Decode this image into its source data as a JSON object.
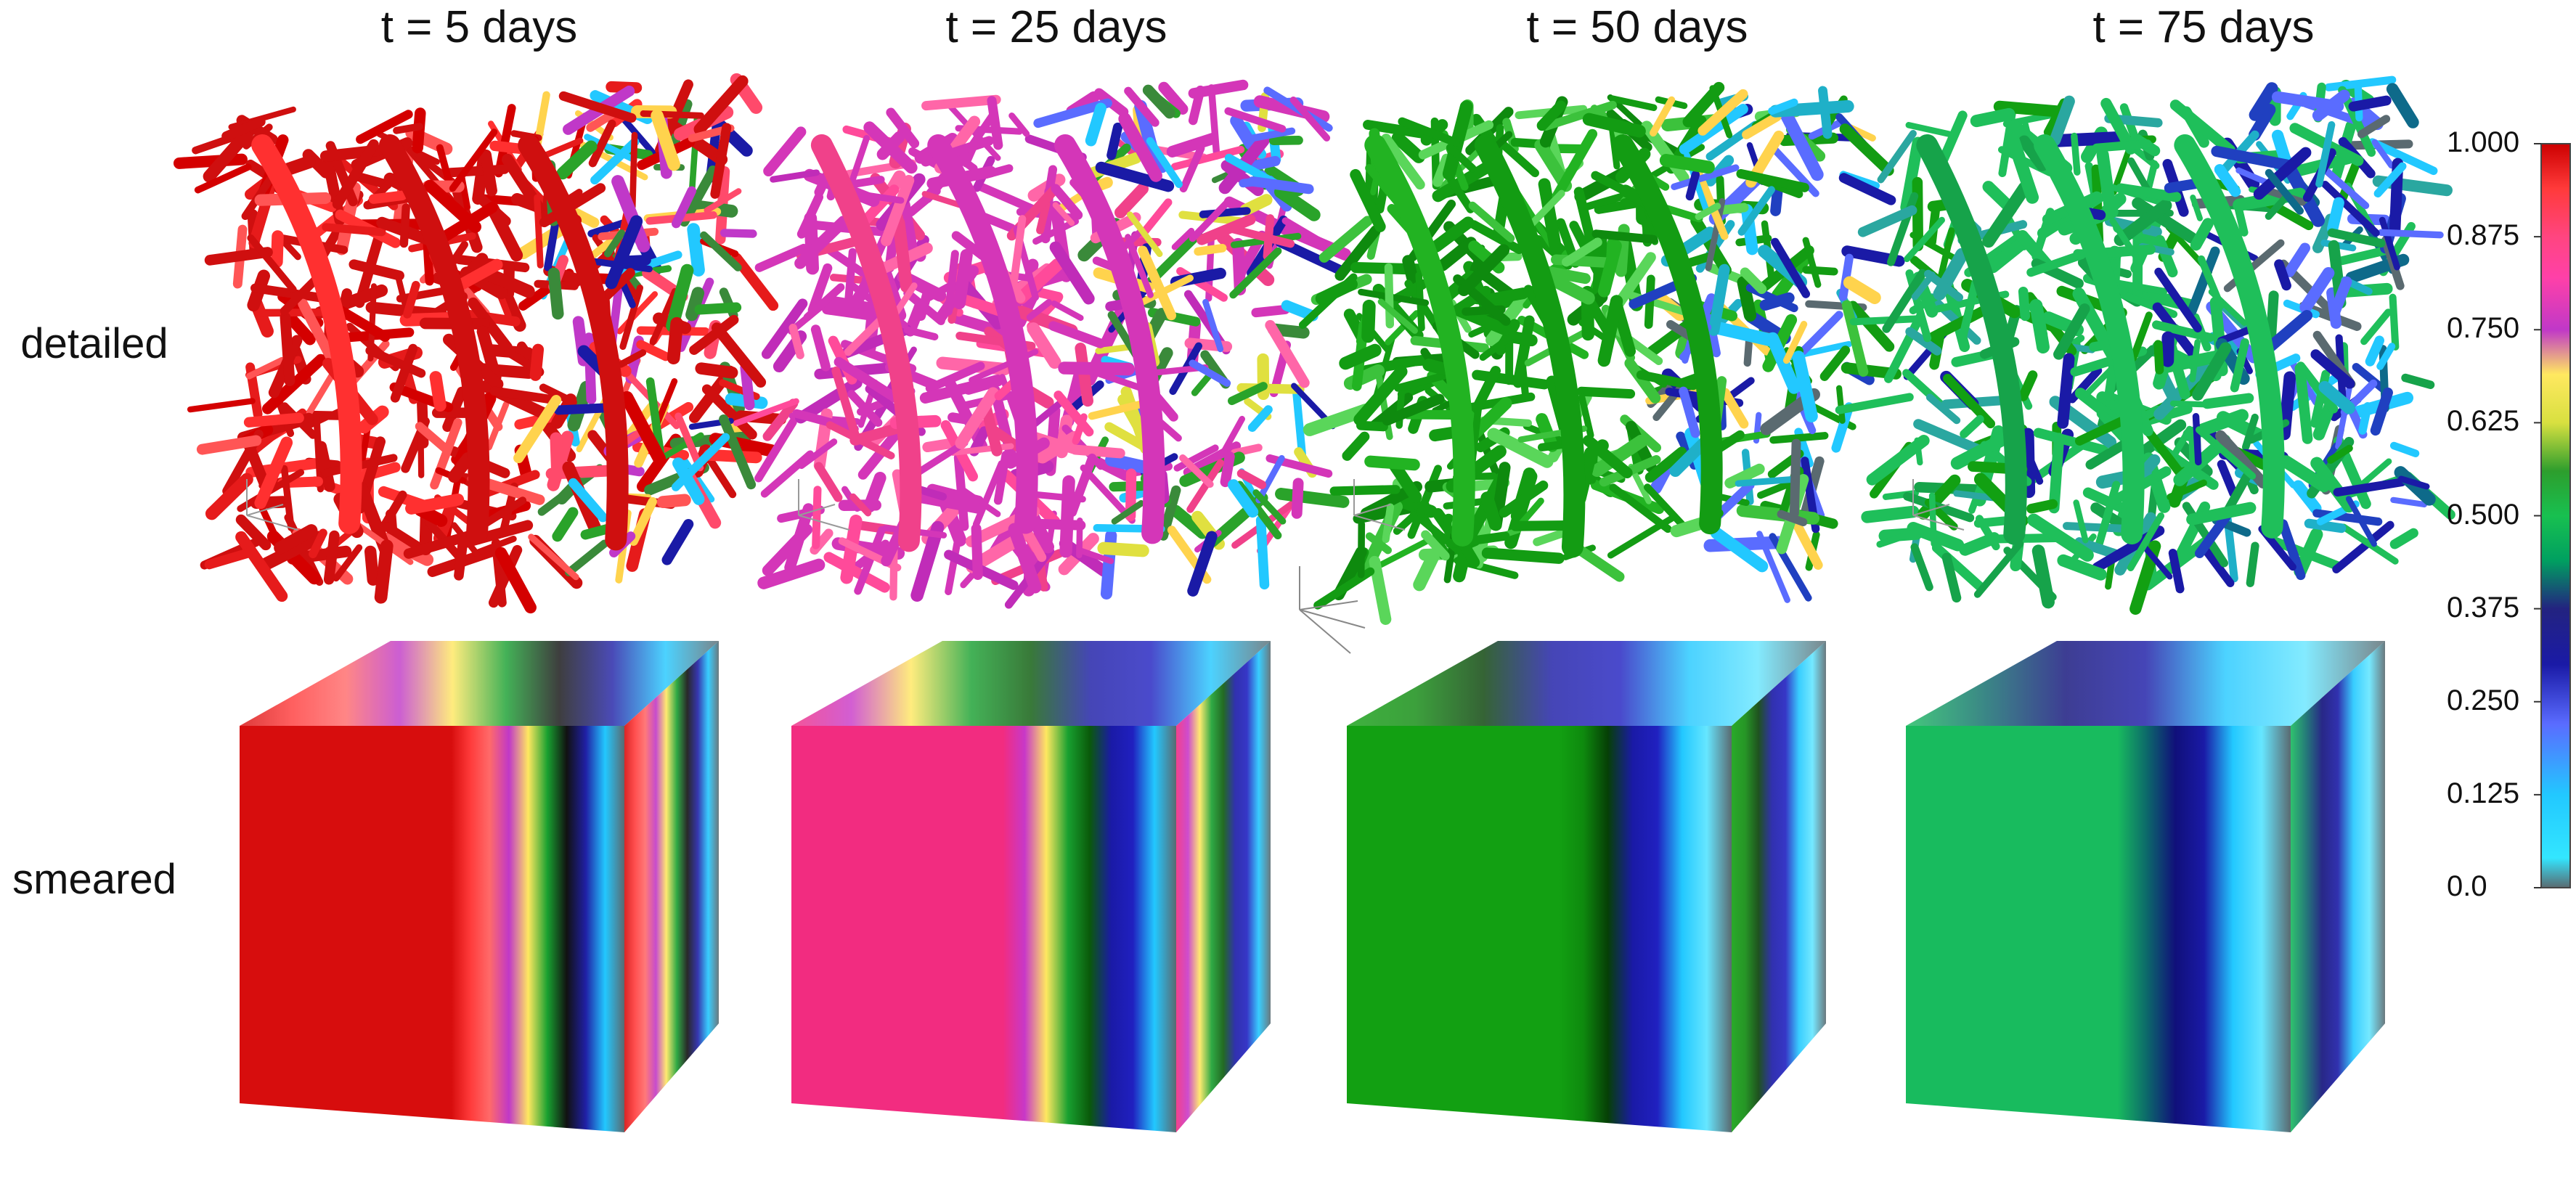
{
  "columns": [
    "t = 5 days",
    "t = 25 days",
    "t = 50 days",
    "t = 75 days"
  ],
  "rows": [
    "detailed",
    "smeared"
  ],
  "colorbar": {
    "ticks": [
      "1.000",
      "0.875",
      "0.750",
      "0.625",
      "0.500",
      "0.375",
      "0.250",
      "0.125",
      "0.0"
    ],
    "colormap": [
      [
        0.0,
        "#5a6a70"
      ],
      [
        0.04,
        "#33e6ff"
      ],
      [
        0.125,
        "#22c8ff"
      ],
      [
        0.22,
        "#5a6cff"
      ],
      [
        0.3,
        "#1a1aa6"
      ],
      [
        0.375,
        "#232380"
      ],
      [
        0.44,
        "#00a060"
      ],
      [
        0.5,
        "#18c050"
      ],
      [
        0.56,
        "#2d9e2d"
      ],
      [
        0.625,
        "#d8e040"
      ],
      [
        0.69,
        "#ffe860"
      ],
      [
        0.75,
        "#c038c8"
      ],
      [
        0.82,
        "#ff40a8"
      ],
      [
        0.875,
        "#ff4580"
      ],
      [
        0.94,
        "#ff3a3a"
      ],
      [
        1.0,
        "#cc0000"
      ]
    ]
  },
  "panels": [
    {
      "fibers_main": "#cf0f0f",
      "fibers_secondary": [
        "#ff3030",
        "#e61b1b",
        "#ff5555",
        "#d40000"
      ],
      "fibers_right": [
        "#ff4a6b",
        "#2aa32a",
        "#1a1aa6",
        "#ffd34d",
        "#22c8ff",
        "#c038c8",
        "#3a8a3a"
      ],
      "front_face": "#d70d0d",
      "side_bands": [
        "#d70d0d",
        "#ff3b3b",
        "#ff6a6a",
        "#c038c8",
        "#ffe860",
        "#18a030",
        "#111111",
        "#2020a6",
        "#22c8ff",
        "#5a6a70"
      ]
    },
    {
      "fibers_main": "#d436b8",
      "fibers_secondary": [
        "#f0418a",
        "#ff66a8",
        "#c02cb8",
        "#ff4a9a"
      ],
      "fibers_right": [
        "#2aa32a",
        "#1a1aa6",
        "#ffd34d",
        "#22c8ff",
        "#3a8a3a",
        "#5a6cff",
        "#e0e040"
      ],
      "front_face": "#f22c80",
      "side_bands": [
        "#f22c80",
        "#c838c8",
        "#ffe860",
        "#18a030",
        "#0a5a0a",
        "#1a1aa6",
        "#2020c0",
        "#22c8ff",
        "#5a6a70"
      ]
    },
    {
      "fibers_main": "#139c13",
      "fibers_secondary": [
        "#22b322",
        "#0e8a0e",
        "#3cc23c",
        "#5ad65a"
      ],
      "fibers_right": [
        "#1a1aa6",
        "#22c8ff",
        "#5a6cff",
        "#2040c0",
        "#1fb0c8",
        "#ffd34d",
        "#5a6a70"
      ],
      "front_face": "#12a012",
      "side_bands": [
        "#12a012",
        "#0e8a0e",
        "#063f06",
        "#1a1aa6",
        "#2020c0",
        "#22c8ff",
        "#66e6ff",
        "#5a6a70"
      ]
    },
    {
      "fibers_main": "#1fbf5a",
      "fibers_secondary": [
        "#16a34a",
        "#1a1aa6",
        "#2aa7a0",
        "#12a012"
      ],
      "fibers_right": [
        "#1a1aa6",
        "#2040c0",
        "#22c8ff",
        "#5a6cff",
        "#1fb0c8",
        "#5a6a70",
        "#0e6a8a"
      ],
      "front_face": "#18bb5e",
      "side_bands": [
        "#18bb5e",
        "#0c6a6a",
        "#10107a",
        "#1a1aa6",
        "#22c8ff",
        "#66e6ff",
        "#5a6a70"
      ]
    }
  ]
}
